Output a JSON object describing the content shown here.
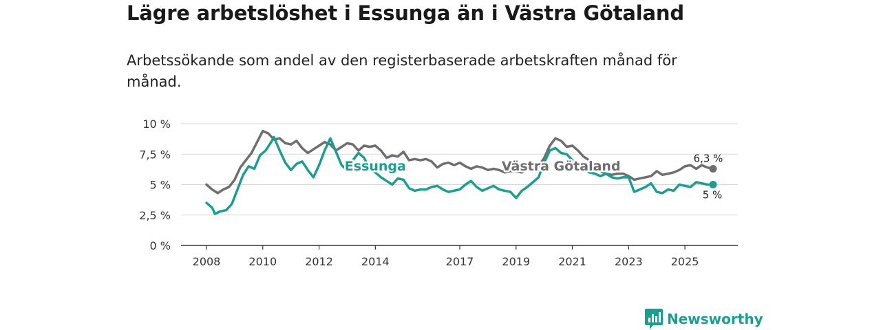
{
  "title": "Lägre arbetslöshet i Essunga än i Västra Götaland",
  "subtitle": "Arbetssökande som andel av den registerbaserade arbetskraften månad för månad.",
  "brand": {
    "name": "Newsworthy",
    "color": "#1b9e92"
  },
  "chart_data": {
    "type": "line",
    "title": "Lägre arbetslöshet i Essunga än i Västra Götaland",
    "xlabel": "",
    "ylabel": "",
    "xlim": [
      2008,
      2026
    ],
    "ylim": [
      0,
      10
    ],
    "y_ticks": [
      0,
      2.5,
      5,
      7.5,
      10
    ],
    "y_tick_labels": [
      "0 %",
      "2,5 %",
      "5 %",
      "7,5 %",
      "10 %"
    ],
    "x_ticks": [
      2008,
      2010,
      2012,
      2014,
      2017,
      2019,
      2021,
      2023,
      2025
    ],
    "x_tick_labels": [
      "2008",
      "2010",
      "2012",
      "2014",
      "2017",
      "2019",
      "2021",
      "2023",
      "2025"
    ],
    "grid": true,
    "series": [
      {
        "name": "Västra Götaland",
        "color": "#6e6e6e",
        "end_label": "6,3 %",
        "points": [
          [
            2008.0,
            5.0
          ],
          [
            2008.2,
            4.6
          ],
          [
            2008.4,
            4.3
          ],
          [
            2008.6,
            4.6
          ],
          [
            2008.8,
            4.8
          ],
          [
            2009.0,
            5.4
          ],
          [
            2009.2,
            6.4
          ],
          [
            2009.4,
            7.0
          ],
          [
            2009.6,
            7.6
          ],
          [
            2009.8,
            8.5
          ],
          [
            2010.0,
            9.4
          ],
          [
            2010.2,
            9.2
          ],
          [
            2010.4,
            8.7
          ],
          [
            2010.6,
            8.8
          ],
          [
            2010.8,
            8.4
          ],
          [
            2011.0,
            8.3
          ],
          [
            2011.2,
            8.6
          ],
          [
            2011.4,
            8.0
          ],
          [
            2011.6,
            7.6
          ],
          [
            2011.8,
            7.9
          ],
          [
            2012.0,
            8.2
          ],
          [
            2012.2,
            8.5
          ],
          [
            2012.4,
            8.3
          ],
          [
            2012.6,
            7.8
          ],
          [
            2012.8,
            8.1
          ],
          [
            2013.0,
            8.4
          ],
          [
            2013.2,
            8.3
          ],
          [
            2013.4,
            7.8
          ],
          [
            2013.6,
            8.2
          ],
          [
            2013.8,
            8.1
          ],
          [
            2014.0,
            8.2
          ],
          [
            2014.2,
            7.8
          ],
          [
            2014.4,
            7.2
          ],
          [
            2014.6,
            7.4
          ],
          [
            2014.8,
            7.3
          ],
          [
            2015.0,
            7.7
          ],
          [
            2015.2,
            7.0
          ],
          [
            2015.4,
            7.1
          ],
          [
            2015.6,
            7.0
          ],
          [
            2015.8,
            7.1
          ],
          [
            2016.0,
            6.9
          ],
          [
            2016.2,
            6.4
          ],
          [
            2016.4,
            6.7
          ],
          [
            2016.6,
            6.8
          ],
          [
            2016.8,
            6.6
          ],
          [
            2017.0,
            6.8
          ],
          [
            2017.2,
            6.5
          ],
          [
            2017.4,
            6.3
          ],
          [
            2017.6,
            6.5
          ],
          [
            2017.8,
            6.4
          ],
          [
            2018.0,
            6.2
          ],
          [
            2018.2,
            6.3
          ],
          [
            2018.4,
            6.2
          ],
          [
            2018.6,
            6.0
          ],
          [
            2018.8,
            6.1
          ],
          [
            2019.0,
            6.1
          ],
          [
            2019.2,
            6.0
          ],
          [
            2019.4,
            6.2
          ],
          [
            2019.6,
            6.4
          ],
          [
            2019.8,
            6.5
          ],
          [
            2020.0,
            7.2
          ],
          [
            2020.2,
            8.2
          ],
          [
            2020.4,
            8.8
          ],
          [
            2020.6,
            8.6
          ],
          [
            2020.8,
            8.1
          ],
          [
            2021.0,
            8.2
          ],
          [
            2021.2,
            7.8
          ],
          [
            2021.4,
            7.3
          ],
          [
            2021.6,
            7.0
          ],
          [
            2021.8,
            6.6
          ],
          [
            2022.0,
            6.1
          ],
          [
            2022.2,
            5.9
          ],
          [
            2022.4,
            5.8
          ],
          [
            2022.6,
            5.9
          ],
          [
            2022.8,
            5.9
          ],
          [
            2023.0,
            5.7
          ],
          [
            2023.2,
            5.4
          ],
          [
            2023.4,
            5.5
          ],
          [
            2023.6,
            5.6
          ],
          [
            2023.8,
            5.7
          ],
          [
            2024.0,
            6.1
          ],
          [
            2024.2,
            5.8
          ],
          [
            2024.4,
            5.9
          ],
          [
            2024.6,
            6.0
          ],
          [
            2024.8,
            6.2
          ],
          [
            2025.0,
            6.5
          ],
          [
            2025.2,
            6.6
          ],
          [
            2025.4,
            6.3
          ],
          [
            2025.6,
            6.6
          ],
          [
            2025.8,
            6.4
          ],
          [
            2026.0,
            6.3
          ]
        ]
      },
      {
        "name": "Essunga",
        "color": "#1b9e92",
        "end_label": "5 %",
        "points": [
          [
            2008.0,
            3.5
          ],
          [
            2008.2,
            3.1
          ],
          [
            2008.3,
            2.6
          ],
          [
            2008.5,
            2.8
          ],
          [
            2008.7,
            2.9
          ],
          [
            2008.9,
            3.4
          ],
          [
            2009.1,
            4.6
          ],
          [
            2009.3,
            5.8
          ],
          [
            2009.5,
            6.5
          ],
          [
            2009.7,
            6.3
          ],
          [
            2009.9,
            7.4
          ],
          [
            2010.1,
            7.8
          ],
          [
            2010.3,
            8.5
          ],
          [
            2010.4,
            8.9
          ],
          [
            2010.6,
            7.8
          ],
          [
            2010.8,
            6.8
          ],
          [
            2011.0,
            6.2
          ],
          [
            2011.2,
            6.7
          ],
          [
            2011.4,
            6.9
          ],
          [
            2011.6,
            6.2
          ],
          [
            2011.8,
            5.6
          ],
          [
            2012.0,
            6.6
          ],
          [
            2012.2,
            7.8
          ],
          [
            2012.4,
            8.8
          ],
          [
            2012.6,
            7.7
          ],
          [
            2012.8,
            6.6
          ],
          [
            2013.0,
            6.2
          ],
          [
            2013.2,
            7.0
          ],
          [
            2013.4,
            7.6
          ],
          [
            2013.6,
            7.2
          ],
          [
            2013.8,
            6.3
          ],
          [
            2014.0,
            6.0
          ],
          [
            2014.2,
            5.6
          ],
          [
            2014.4,
            5.3
          ],
          [
            2014.6,
            5.0
          ],
          [
            2014.8,
            5.5
          ],
          [
            2015.0,
            5.4
          ],
          [
            2015.2,
            4.7
          ],
          [
            2015.4,
            4.5
          ],
          [
            2015.6,
            4.6
          ],
          [
            2015.8,
            4.6
          ],
          [
            2016.0,
            4.8
          ],
          [
            2016.2,
            4.9
          ],
          [
            2016.4,
            4.6
          ],
          [
            2016.6,
            4.4
          ],
          [
            2016.8,
            4.5
          ],
          [
            2017.0,
            4.6
          ],
          [
            2017.2,
            5.0
          ],
          [
            2017.4,
            5.3
          ],
          [
            2017.6,
            4.8
          ],
          [
            2017.8,
            4.5
          ],
          [
            2018.0,
            4.7
          ],
          [
            2018.2,
            4.9
          ],
          [
            2018.4,
            4.6
          ],
          [
            2018.6,
            4.5
          ],
          [
            2018.8,
            4.4
          ],
          [
            2019.0,
            3.9
          ],
          [
            2019.2,
            4.5
          ],
          [
            2019.4,
            4.8
          ],
          [
            2019.6,
            5.2
          ],
          [
            2019.8,
            5.6
          ],
          [
            2020.0,
            6.8
          ],
          [
            2020.2,
            7.8
          ],
          [
            2020.4,
            8.0
          ],
          [
            2020.6,
            7.6
          ],
          [
            2020.8,
            7.5
          ],
          [
            2021.0,
            7.0
          ],
          [
            2021.2,
            6.6
          ],
          [
            2021.4,
            6.3
          ],
          [
            2021.6,
            6.0
          ],
          [
            2021.8,
            5.9
          ],
          [
            2022.0,
            5.7
          ],
          [
            2022.2,
            5.9
          ],
          [
            2022.4,
            5.6
          ],
          [
            2022.6,
            5.5
          ],
          [
            2022.8,
            5.6
          ],
          [
            2023.0,
            5.6
          ],
          [
            2023.2,
            4.4
          ],
          [
            2023.4,
            4.6
          ],
          [
            2023.6,
            4.8
          ],
          [
            2023.8,
            5.1
          ],
          [
            2024.0,
            4.4
          ],
          [
            2024.2,
            4.3
          ],
          [
            2024.4,
            4.6
          ],
          [
            2024.6,
            4.5
          ],
          [
            2024.8,
            5.0
          ],
          [
            2025.0,
            4.9
          ],
          [
            2025.2,
            4.8
          ],
          [
            2025.4,
            5.2
          ],
          [
            2025.6,
            5.1
          ],
          [
            2025.8,
            5.0
          ],
          [
            2026.0,
            5.0
          ]
        ]
      }
    ],
    "annotations": [
      {
        "text": "Essunga",
        "series": "Essunga",
        "x": 2014.0,
        "y": 6.5
      },
      {
        "text": "Västra Götaland",
        "series": "Västra Götaland",
        "x": 2020.6,
        "y": 6.5
      }
    ]
  }
}
